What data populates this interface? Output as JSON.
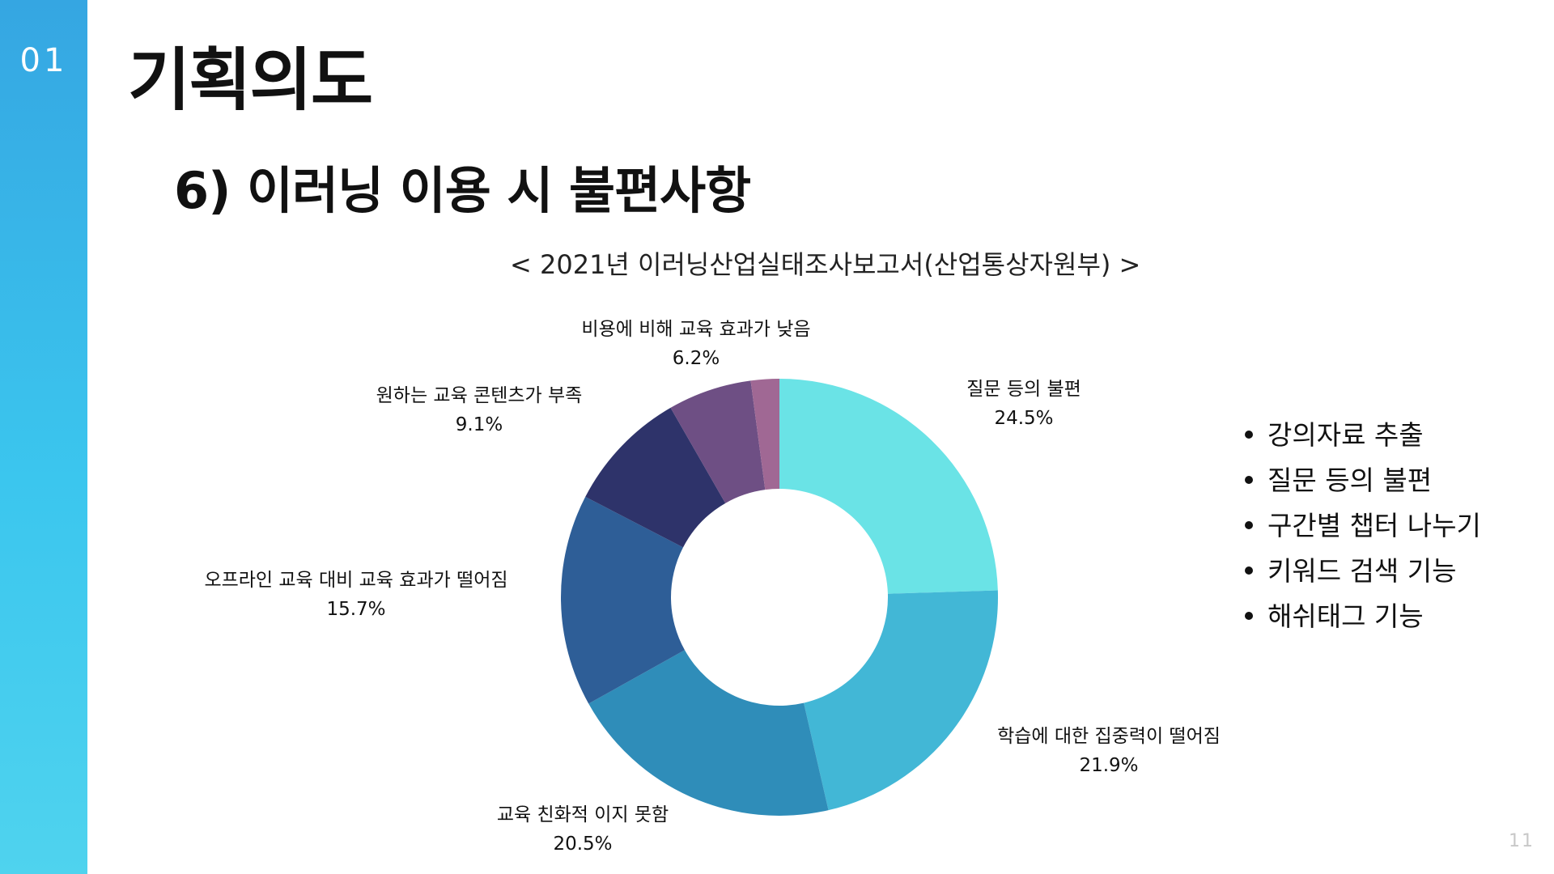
{
  "section": {
    "number": "01"
  },
  "header": {
    "title": "기획의도"
  },
  "subheading": "6) 이러닝 이용 시 불편사항",
  "bullets": [
    "강의자료 추출",
    "질문 등의 불편",
    "구간별 챕터 나누기",
    "키워드 검색 기능",
    "해쉬태그 기능"
  ],
  "page_number": "11",
  "colors": {
    "sidebar_top": "#35a6e2",
    "sidebar_bottom": "#4fd3ee"
  },
  "chart_data": {
    "type": "pie",
    "variant": "donut",
    "title": "< 2021년 이러닝산업실태조사보고서(산업통상자원부) >",
    "categories": [
      "질문 등의 불편",
      "학습에 대한 집중력이 떨어짐",
      "교육 친화적 이지 못함",
      "오프라인 교육 대비 교육 효과가 떨어짐",
      "원하는 교육 콘텐츠가 부족",
      "비용에 비해 교육 효과가 낮음",
      ""
    ],
    "values": [
      24.5,
      21.9,
      20.5,
      15.7,
      9.1,
      6.2,
      2.1
    ],
    "value_labels": [
      "24.5%",
      "21.9%",
      "20.5%",
      "15.7%",
      "9.1%",
      "6.2%",
      ""
    ],
    "colors": [
      "#6ae3e6",
      "#42b7d6",
      "#2f8db9",
      "#2e5e97",
      "#2e336a",
      "#6e4f84",
      "#a06894"
    ],
    "start": "12 o'clock",
    "direction": "clockwise"
  }
}
